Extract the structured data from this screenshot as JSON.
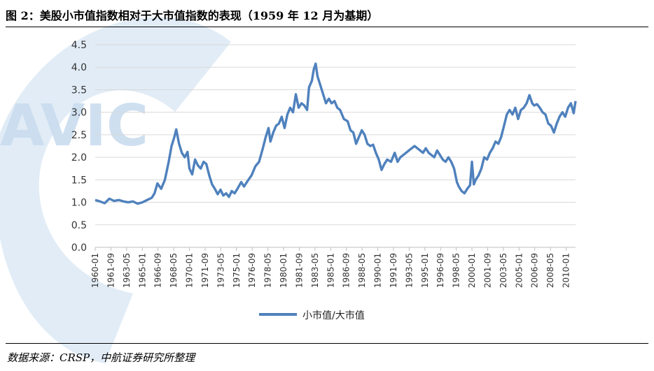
{
  "header": {
    "title": "图 2：美股小市值指数相对于大市值指数的表现（1959 年 12 月为基期）"
  },
  "footer": {
    "source": "数据来源：CRSP，中航证券研究所整理"
  },
  "watermark": {
    "text": "AVIC",
    "color": "#c9dcef"
  },
  "colors": {
    "line": "#4f81bd",
    "grid": "#d9d9d9",
    "axis": "#bfbfbf"
  },
  "chart_data": {
    "type": "line",
    "ylim": [
      0,
      4.5
    ],
    "yticks": [
      "0.0",
      "0.5",
      "1.0",
      "1.5",
      "2.0",
      "2.5",
      "3.0",
      "3.5",
      "4.0",
      "4.5"
    ],
    "xticks": [
      "1960-01",
      "1961-09",
      "1963-05",
      "1965-01",
      "1966-09",
      "1968-05",
      "1970-01",
      "1971-09",
      "1973-05",
      "1975-01",
      "1976-09",
      "1978-05",
      "1980-01",
      "1981-09",
      "1983-05",
      "1985-01",
      "1986-09",
      "1988-05",
      "1990-01",
      "1991-09",
      "1993-05",
      "1995-01",
      "1996-09",
      "1998-05",
      "2000-01",
      "2001-09",
      "2003-05",
      "2005-01",
      "2006-09",
      "2008-05",
      "2010-01"
    ],
    "legend": {
      "position": "bottom"
    },
    "grid": true,
    "series": [
      {
        "name": "小市值/大市值",
        "x": [
          1960.0,
          1960.5,
          1961.0,
          1961.5,
          1962.0,
          1962.5,
          1963.0,
          1963.5,
          1964.0,
          1964.5,
          1965.0,
          1965.5,
          1966.0,
          1966.3,
          1966.6,
          1967.0,
          1967.4,
          1967.8,
          1968.1,
          1968.4,
          1968.6,
          1968.9,
          1969.2,
          1969.5,
          1969.8,
          1970.0,
          1970.3,
          1970.6,
          1970.9,
          1971.2,
          1971.5,
          1971.8,
          1972.1,
          1972.4,
          1972.7,
          1973.0,
          1973.3,
          1973.6,
          1973.9,
          1974.2,
          1974.5,
          1974.8,
          1975.1,
          1975.5,
          1975.8,
          1976.2,
          1976.6,
          1977.0,
          1977.4,
          1977.8,
          1978.1,
          1978.4,
          1978.6,
          1978.9,
          1979.2,
          1979.5,
          1979.8,
          1980.1,
          1980.4,
          1980.7,
          1981.0,
          1981.3,
          1981.6,
          1981.9,
          1982.2,
          1982.5,
          1982.7,
          1983.0,
          1983.2,
          1983.4,
          1983.6,
          1983.9,
          1984.2,
          1984.5,
          1984.8,
          1985.1,
          1985.4,
          1985.7,
          1986.0,
          1986.4,
          1986.8,
          1987.1,
          1987.4,
          1987.7,
          1988.0,
          1988.3,
          1988.6,
          1988.9,
          1989.2,
          1989.5,
          1989.8,
          1990.1,
          1990.4,
          1990.7,
          1991.0,
          1991.4,
          1991.8,
          1992.1,
          1992.4,
          1992.7,
          1993.0,
          1993.3,
          1993.6,
          1993.9,
          1994.2,
          1994.5,
          1994.8,
          1995.1,
          1995.4,
          1995.7,
          1996.0,
          1996.3,
          1996.6,
          1996.9,
          1997.2,
          1997.5,
          1997.8,
          1998.1,
          1998.4,
          1998.6,
          1998.9,
          1999.2,
          1999.5,
          1999.8,
          2000.0,
          2000.2,
          2000.4,
          2000.7,
          2001.0,
          2001.3,
          2001.6,
          2001.9,
          2002.2,
          2002.5,
          2002.8,
          2003.1,
          2003.4,
          2003.7,
          2004.0,
          2004.3,
          2004.6,
          2004.9,
          2005.2,
          2005.5,
          2005.8,
          2006.1,
          2006.4,
          2006.6,
          2006.9,
          2007.2,
          2007.5,
          2007.8,
          2008.1,
          2008.4,
          2008.7,
          2009.0,
          2009.3,
          2009.6,
          2009.9,
          2010.2,
          2010.5,
          2010.8,
          2011.0
        ],
        "values": [
          1.05,
          1.02,
          0.98,
          1.08,
          1.03,
          1.05,
          1.02,
          1.0,
          1.02,
          0.97,
          1.0,
          1.05,
          1.1,
          1.2,
          1.42,
          1.3,
          1.5,
          1.9,
          2.25,
          2.45,
          2.62,
          2.3,
          2.1,
          2.0,
          2.12,
          1.75,
          1.62,
          1.95,
          1.82,
          1.75,
          1.9,
          1.85,
          1.6,
          1.4,
          1.3,
          1.18,
          1.28,
          1.15,
          1.2,
          1.12,
          1.25,
          1.2,
          1.3,
          1.45,
          1.35,
          1.48,
          1.6,
          1.8,
          1.9,
          2.2,
          2.45,
          2.65,
          2.35,
          2.55,
          2.7,
          2.75,
          2.9,
          2.65,
          2.95,
          3.1,
          3.0,
          3.4,
          3.1,
          3.2,
          3.15,
          3.05,
          3.55,
          3.7,
          3.95,
          4.08,
          3.8,
          3.6,
          3.4,
          3.2,
          3.3,
          3.2,
          3.25,
          3.1,
          3.05,
          2.85,
          2.8,
          2.6,
          2.55,
          2.3,
          2.45,
          2.6,
          2.5,
          2.3,
          2.25,
          2.28,
          2.1,
          1.95,
          1.72,
          1.85,
          1.95,
          1.9,
          2.1,
          1.9,
          2.0,
          2.05,
          2.1,
          2.15,
          2.2,
          2.25,
          2.2,
          2.15,
          2.1,
          2.2,
          2.1,
          2.05,
          2.0,
          2.15,
          2.05,
          1.95,
          1.9,
          2.0,
          1.9,
          1.75,
          1.45,
          1.35,
          1.25,
          1.2,
          1.3,
          1.38,
          1.9,
          1.4,
          1.5,
          1.6,
          1.75,
          2.0,
          1.95,
          2.1,
          2.2,
          2.35,
          2.3,
          2.45,
          2.7,
          2.95,
          3.05,
          2.95,
          3.1,
          2.85,
          3.05,
          3.1,
          3.2,
          3.38,
          3.2,
          3.15,
          3.18,
          3.1,
          3.0,
          2.95,
          2.75,
          2.7,
          2.55,
          2.75,
          2.9,
          3.0,
          2.9,
          3.1,
          3.2,
          2.98,
          3.25
        ]
      }
    ]
  }
}
